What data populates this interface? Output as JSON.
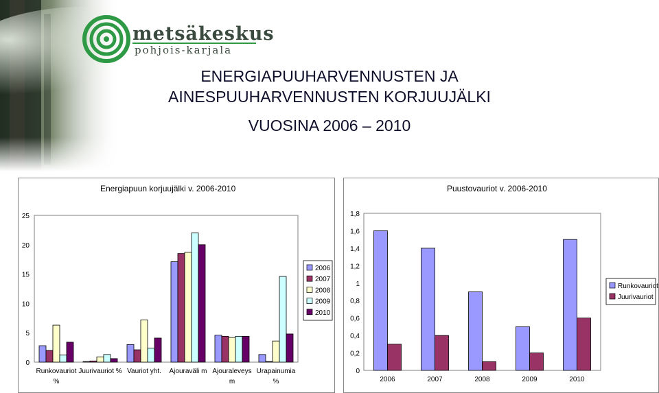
{
  "header": {
    "logo_name": "metsäkeskus",
    "logo_region": "pohjois-karjala",
    "title_lines": [
      "ENERGIAPUUHARVENNUSTEN JA",
      "AINESPUUHARVENNUSTEN KORJUUJÄLKI",
      "VUOSINA 2006 – 2010"
    ]
  },
  "chart_data": [
    {
      "type": "bar",
      "title": "Energiapuun korjuujälki v. 2006-2010",
      "categories": [
        [
          "Runkovauriot",
          "%"
        ],
        [
          "Juurivauriot %"
        ],
        [
          "Vauriot yht."
        ],
        [
          "Ajouraväli m"
        ],
        [
          "Ajouraleveys",
          "m"
        ],
        [
          "Urapainumia",
          "%"
        ]
      ],
      "series": [
        {
          "name": "2006",
          "color": "#9999ff",
          "values": [
            2.8,
            0.1,
            3.0,
            17.1,
            4.6,
            1.3
          ]
        },
        {
          "name": "2007",
          "color": "#993366",
          "values": [
            2.0,
            0.2,
            2.1,
            18.5,
            4.4,
            0.1
          ]
        },
        {
          "name": "2008",
          "color": "#ffffcc",
          "values": [
            6.3,
            0.9,
            7.2,
            18.7,
            4.2,
            3.6
          ]
        },
        {
          "name": "2009",
          "color": "#ccffff",
          "values": [
            1.2,
            1.3,
            2.4,
            22.0,
            4.4,
            14.6
          ]
        },
        {
          "name": "2010",
          "color": "#660066",
          "values": [
            3.4,
            0.6,
            4.1,
            20.0,
            4.4,
            4.8
          ]
        }
      ],
      "ylim": [
        0,
        25
      ],
      "yticks": [
        "0",
        "5",
        "10",
        "15",
        "20",
        "25"
      ],
      "legend": "right"
    },
    {
      "type": "bar",
      "title": "Puustovauriot v. 2006-2010",
      "categories": [
        "2006",
        "2007",
        "2008",
        "2009",
        "2010"
      ],
      "series": [
        {
          "name": "Runkovauriot",
          "color": "#9999ff",
          "values": [
            1.6,
            1.4,
            0.9,
            0.5,
            1.5
          ]
        },
        {
          "name": "Juurivauriot",
          "color": "#993366",
          "values": [
            0.3,
            0.4,
            0.1,
            0.2,
            0.6
          ]
        }
      ],
      "ylim": [
        0,
        1.8
      ],
      "yticks": [
        "0",
        "0,2",
        "0,4",
        "0,6",
        "0,8",
        "1",
        "1,2",
        "1,4",
        "1,6",
        "1,8"
      ],
      "legend": "right"
    }
  ]
}
